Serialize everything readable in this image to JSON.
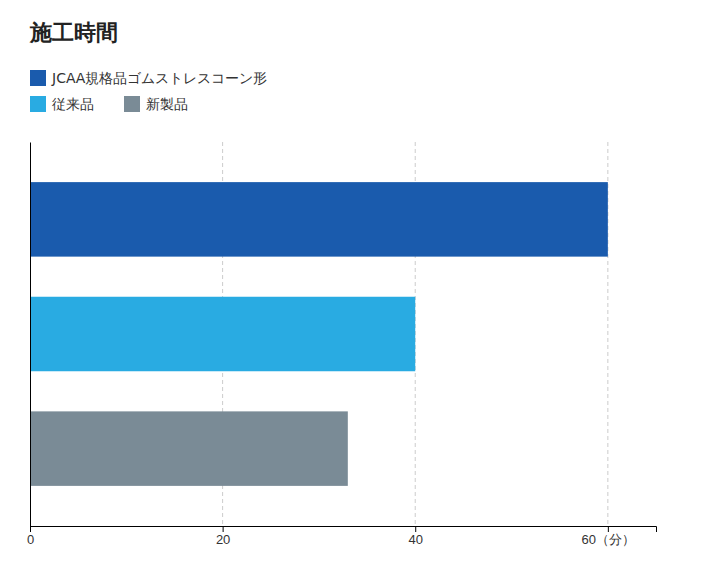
{
  "chart_data": {
    "type": "bar",
    "orientation": "horizontal",
    "title": "施工時間",
    "categories": [
      "JCAA規格品ゴムストレスコーン形",
      "従来品",
      "新製品"
    ],
    "values": [
      60,
      40,
      33
    ],
    "colors": [
      "#1A5BAD",
      "#29ABE2",
      "#7A8B96"
    ],
    "xlim": [
      0,
      65
    ],
    "xticks": [
      0,
      20,
      40,
      {
        "value": 60,
        "label": "60（分）"
      }
    ],
    "grid": true,
    "legend": "top-left",
    "tick_labels": "x"
  }
}
